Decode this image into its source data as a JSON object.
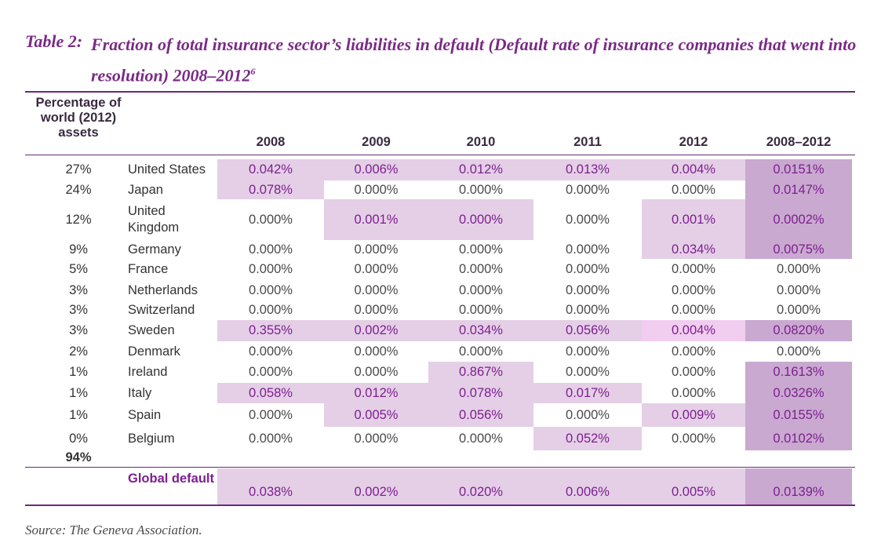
{
  "table": {
    "label": "Table 2:",
    "title": "Fraction of total insurance sector’s liabilities in default (Default rate of insurance companies that went into resolution) 2008–2012",
    "footnote_ref": "6",
    "weight_header": "Percentage of world (2012) assets",
    "columns": [
      "2008",
      "2009",
      "2010",
      "2011",
      "2012",
      "2008–2012"
    ],
    "rows": [
      {
        "weight": "27%",
        "country": "United States",
        "values": [
          "0.042%",
          "0.006%",
          "0.012%",
          "0.013%",
          "0.004%",
          "0.0151%"
        ]
      },
      {
        "weight": "24%",
        "country": "Japan",
        "values": [
          "0.078%",
          "0.000%",
          "0.000%",
          "0.000%",
          "0.000%",
          "0.0147%"
        ]
      },
      {
        "weight": "12%",
        "country": "United Kingdom",
        "values": [
          "0.000%",
          "0.001%",
          "0.000%",
          "0.000%",
          "0.001%",
          "0.0002%"
        ]
      },
      {
        "weight": "9%",
        "country": "Germany",
        "values": [
          "0.000%",
          "0.000%",
          "0.000%",
          "0.000%",
          "0.034%",
          "0.0075%"
        ]
      },
      {
        "weight": "5%",
        "country": "France",
        "values": [
          "0.000%",
          "0.000%",
          "0.000%",
          "0.000%",
          "0.000%",
          "0.000%"
        ]
      },
      {
        "weight": "3%",
        "country": "Netherlands",
        "values": [
          "0.000%",
          "0.000%",
          "0.000%",
          "0.000%",
          "0.000%",
          "0.000%"
        ]
      },
      {
        "weight": "3%",
        "country": "Switzerland",
        "values": [
          "0.000%",
          "0.000%",
          "0.000%",
          "0.000%",
          "0.000%",
          "0.000%"
        ]
      },
      {
        "weight": "3%",
        "country": "Sweden",
        "values": [
          "0.355%",
          "0.002%",
          "0.034%",
          "0.056%",
          "0.004%",
          "0.0820%"
        ]
      },
      {
        "weight": "2%",
        "country": "Denmark",
        "values": [
          "0.000%",
          "0.000%",
          "0.000%",
          "0.000%",
          "0.000%",
          "0.000%"
        ]
      },
      {
        "weight": "1%",
        "country": "Ireland",
        "values": [
          "0.000%",
          "0.000%",
          "0.867%",
          "0.000%",
          "0.000%",
          "0.1613%"
        ]
      },
      {
        "weight": "1%",
        "country": "Italy",
        "values": [
          "0.058%",
          "0.012%",
          "0.078%",
          "0.017%",
          "0.000%",
          "0.0326%"
        ]
      },
      {
        "weight": "1%",
        "country": "Spain",
        "values": [
          "0.000%",
          "0.005%",
          "0.056%",
          "0.000%",
          "0.009%",
          "0.0155%"
        ]
      },
      {
        "weight": "0%",
        "country": "Belgium",
        "values": [
          "0.000%",
          "0.000%",
          "0.000%",
          "0.052%",
          "0.000%",
          "0.0102%"
        ]
      }
    ],
    "weight_total": "94%",
    "global": {
      "label": "Global default rate",
      "values": [
        "0.038%",
        "0.002%",
        "0.020%",
        "0.006%",
        "0.005%",
        "0.0139%"
      ]
    },
    "source": "Source: The Geneva Association.",
    "colors": {
      "title": "#7a2a86",
      "highlight_light": "#e4cfe6",
      "highlight_pink": "#f1cdf0",
      "highlight_dark": "#c9a9d0",
      "rule": "#6a2a7a"
    }
  }
}
